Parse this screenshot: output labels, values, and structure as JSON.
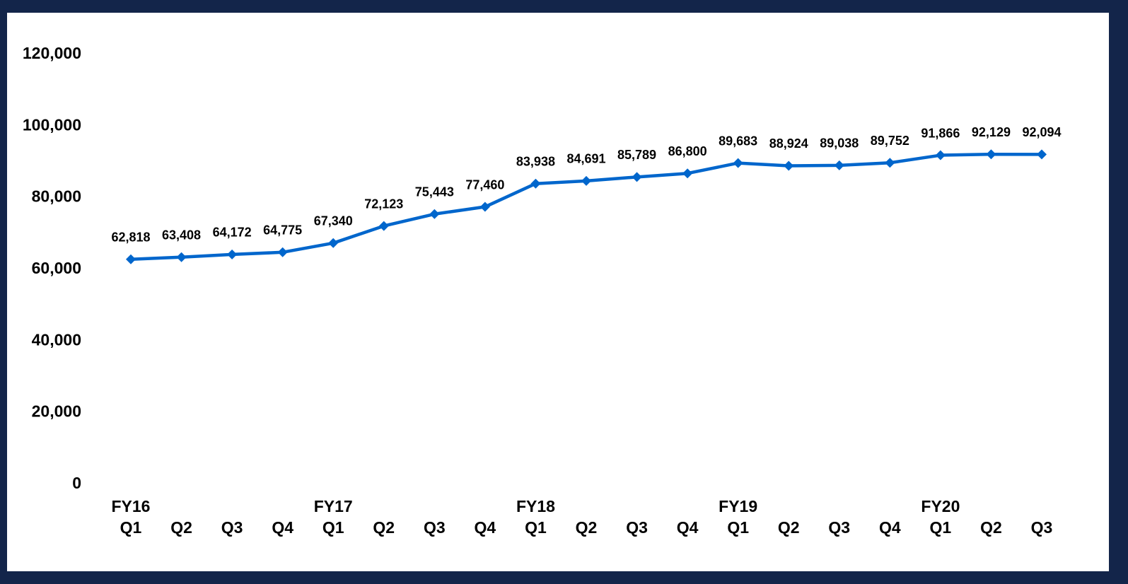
{
  "chart_data": {
    "type": "line",
    "categories": [
      "FY16\nQ1",
      "Q2",
      "Q3",
      "Q4",
      "FY17\nQ1",
      "Q2",
      "Q3",
      "Q4",
      "FY18\nQ1",
      "Q2",
      "Q3",
      "Q4",
      "FY19\nQ1",
      "Q2",
      "Q3",
      "Q4",
      "FY20\nQ1",
      "Q2",
      "Q3"
    ],
    "series": [
      {
        "color": "#0066cc",
        "values": [
          62818,
          63408,
          64172,
          64775,
          67340,
          72123,
          75443,
          77460,
          83938,
          84691,
          85789,
          86800,
          89683,
          88924,
          89038,
          89752,
          91866,
          92129,
          92094
        ],
        "value_labels": [
          "62,818",
          "63,408",
          "64,172",
          "64,775",
          "67,340",
          "72,123",
          "75,443",
          "77,460",
          "83,938",
          "84,691",
          "85,789",
          "86,800",
          "89,683",
          "88,924",
          "89,038",
          "89,752",
          "91,866",
          "92,129",
          "92,094"
        ]
      }
    ],
    "ylim": [
      0,
      120000
    ],
    "yticks": [
      0,
      {
        "value": 20000,
        "label": "20,000"
      },
      {
        "value": 40000,
        "label": "40,000"
      },
      {
        "value": 60000,
        "label": "60,000"
      },
      {
        "value": 80000,
        "label": "80,000"
      },
      {
        "value": 100000,
        "label": "100,000"
      },
      {
        "value": 120000,
        "label": "120,000"
      }
    ],
    "grid": false
  }
}
